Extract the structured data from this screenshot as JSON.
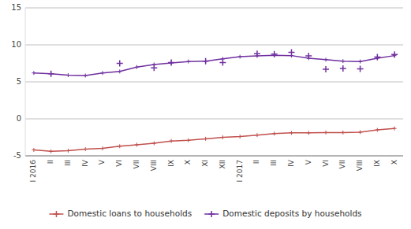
{
  "chart_data": {
    "type": "line",
    "categories": [
      "I 2016",
      "II",
      "III",
      "IV",
      "V",
      "VI",
      "VII",
      "VIII",
      "IX",
      "X",
      "XI",
      "XII",
      "I 2017",
      "II",
      "III",
      "IV",
      "V",
      "VI",
      "VII",
      "VIII",
      "IX",
      "X"
    ],
    "series": [
      {
        "name": "Domestic loans to households",
        "color": "#c0504d",
        "type": "line",
        "marker": "plus",
        "line_style": "solid",
        "values": [
          -4.2,
          -4.4,
          -4.3,
          -4.1,
          -4.0,
          -3.7,
          -3.5,
          -3.3,
          -3.0,
          -2.9,
          -2.7,
          -2.5,
          -2.4,
          -2.2,
          -2.0,
          -1.9,
          -1.9,
          -1.85,
          -1.85,
          -1.8,
          -1.5,
          -1.3
        ]
      },
      {
        "name": "Domestic deposits by households",
        "color": "#7030a0",
        "type": "line",
        "marker": "plus",
        "line_style": "solid",
        "values": [
          6.2,
          6.1,
          5.9,
          5.85,
          6.2,
          6.4,
          7.0,
          7.35,
          7.55,
          7.75,
          7.8,
          8.1,
          8.4,
          8.5,
          8.6,
          8.55,
          8.2,
          8.0,
          7.8,
          7.75,
          8.2,
          8.55
        ]
      },
      {
        "color": "#7030a0",
        "type": "scatter",
        "marker": "plus",
        "values": [
          null,
          6.1,
          null,
          null,
          null,
          7.5,
          null,
          6.9,
          7.6,
          null,
          7.8,
          7.6,
          null,
          8.8,
          8.75,
          9.0,
          8.5,
          6.7,
          6.8,
          6.75,
          8.35,
          8.7
        ]
      }
    ],
    "ylim": [
      -5,
      15
    ],
    "yticks": [
      -5,
      0,
      5,
      10,
      15
    ],
    "grid": true,
    "legend": "bottom"
  }
}
